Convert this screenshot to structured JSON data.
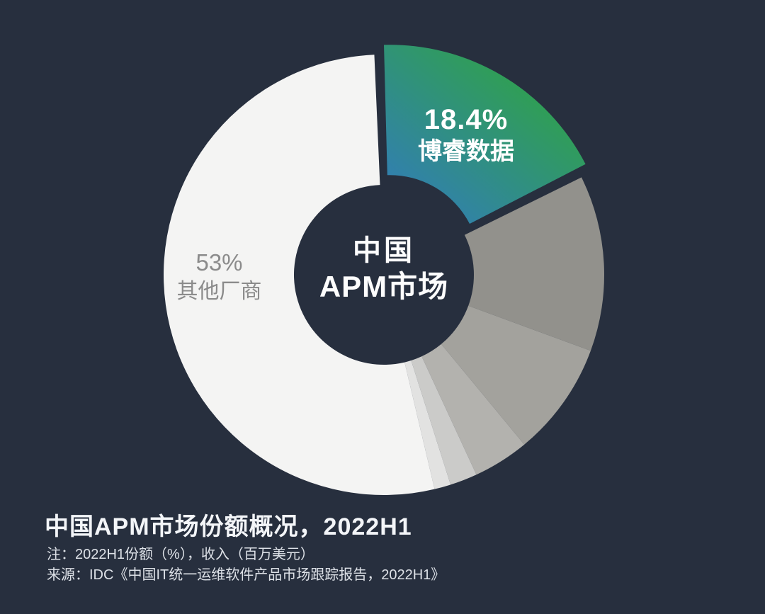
{
  "page": {
    "background_color": "#272f3e"
  },
  "chart_data": {
    "type": "pie",
    "subtype": "donut",
    "title": "中国APM市场份额概况，2022H1",
    "note": "注：2022H1份额（%），收入（百万美元）",
    "source": "来源：IDC《中国IT统一运维软件产品市场跟踪报告，2022H1》",
    "center_label": {
      "line1": "中国",
      "line2": "APM市场"
    },
    "legend_position": "none",
    "start_angle_deg": -92.5,
    "segments": [
      {
        "label": "博睿数据",
        "value": 18.4,
        "display": "18.4%",
        "exploded": true,
        "gradient": true,
        "gradient_from": "#3279c2",
        "gradient_to": "#2fa24a",
        "label_color": "#ffffff"
      },
      {
        "label": "",
        "value": 12.9,
        "display": "",
        "color": "#92918c"
      },
      {
        "label": "",
        "value": 8.4,
        "display": "",
        "color": "#a3a29d"
      },
      {
        "label": "",
        "value": 4.1,
        "display": "",
        "color": "#b3b2ae"
      },
      {
        "label": "",
        "value": 2.0,
        "display": "",
        "color": "#cbcbc9"
      },
      {
        "label": "",
        "value": 1.2,
        "display": "",
        "color": "#e2e2e1"
      },
      {
        "label": "其他厂商",
        "value": 53,
        "display": "53%",
        "color": "#f4f4f3",
        "label_color": "#8b8b8b"
      }
    ],
    "labels": {
      "highlight": {
        "pct": "18.4%",
        "name": "博睿数据"
      },
      "others": {
        "pct": "53%",
        "name": "其他厂商"
      }
    }
  }
}
